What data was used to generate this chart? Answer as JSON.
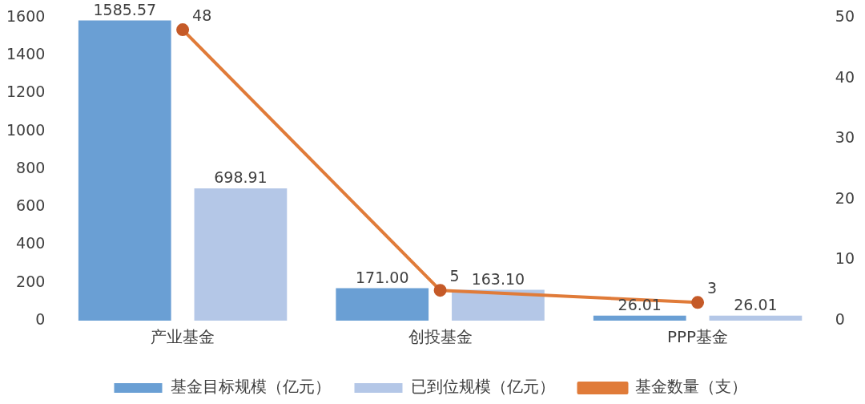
{
  "chart_data": {
    "type": "bar",
    "categories": [
      "产业基金",
      "创投基金",
      "PPP基金"
    ],
    "series": [
      {
        "name": "基金目标规模（亿元）",
        "color": "#6a9fd4",
        "values": [
          1585.57,
          171.0,
          26.01
        ],
        "value_labels": [
          "1585.57",
          "171.00",
          "26.01"
        ]
      },
      {
        "name": "已到位规模（亿元）",
        "color": "#b4c7e7",
        "values": [
          698.91,
          163.1,
          26.01
        ],
        "value_labels": [
          "698.91",
          "163.10",
          "26.01"
        ]
      },
      {
        "name": "基金数量（支）",
        "type": "line",
        "axis": "y2",
        "color": "#e07b39",
        "values": [
          48,
          5,
          3
        ],
        "value_labels": [
          "48",
          "5",
          "3"
        ]
      }
    ],
    "ylim": [
      0,
      1600
    ],
    "yticks": [
      0,
      200,
      400,
      600,
      800,
      1000,
      1200,
      1400,
      1600
    ],
    "y2lim": [
      0,
      50
    ],
    "y2ticks": [
      0,
      10,
      20,
      30,
      40,
      50
    ],
    "grid": false,
    "legend": "bottom",
    "marker": "circle",
    "line_style": "solid"
  }
}
